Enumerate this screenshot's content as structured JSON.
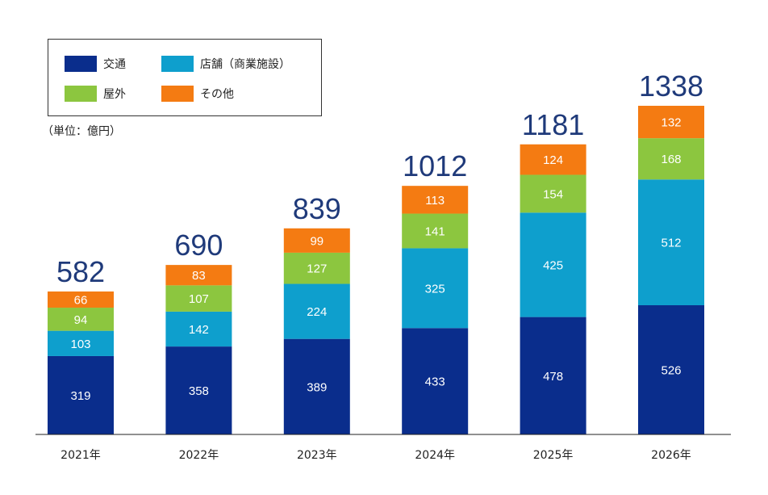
{
  "chart_data": {
    "type": "bar",
    "stacked": true,
    "categories": [
      "2021年",
      "2022年",
      "2023年",
      "2024年",
      "2025年",
      "2026年"
    ],
    "series": [
      {
        "name": "交通",
        "color": "#0a2d8c",
        "values": [
          319,
          358,
          389,
          433,
          478,
          526
        ]
      },
      {
        "name": "店舗（商業施設）",
        "color": "#0e9fcd",
        "values": [
          103,
          142,
          224,
          325,
          425,
          512
        ]
      },
      {
        "name": "屋外",
        "color": "#8cc63f",
        "values": [
          94,
          107,
          127,
          141,
          154,
          168
        ]
      },
      {
        "name": "その他",
        "color": "#f47b12",
        "values": [
          66,
          83,
          99,
          113,
          124,
          132
        ]
      }
    ],
    "totals": [
      "582",
      "690",
      "839",
      "1012",
      "1181",
      "1338"
    ],
    "unit_note": "（単位：億円）",
    "total_color": "#1f3a7a",
    "ylim": [
      0,
      1338
    ],
    "legend_position": "top-left",
    "grid": false
  }
}
